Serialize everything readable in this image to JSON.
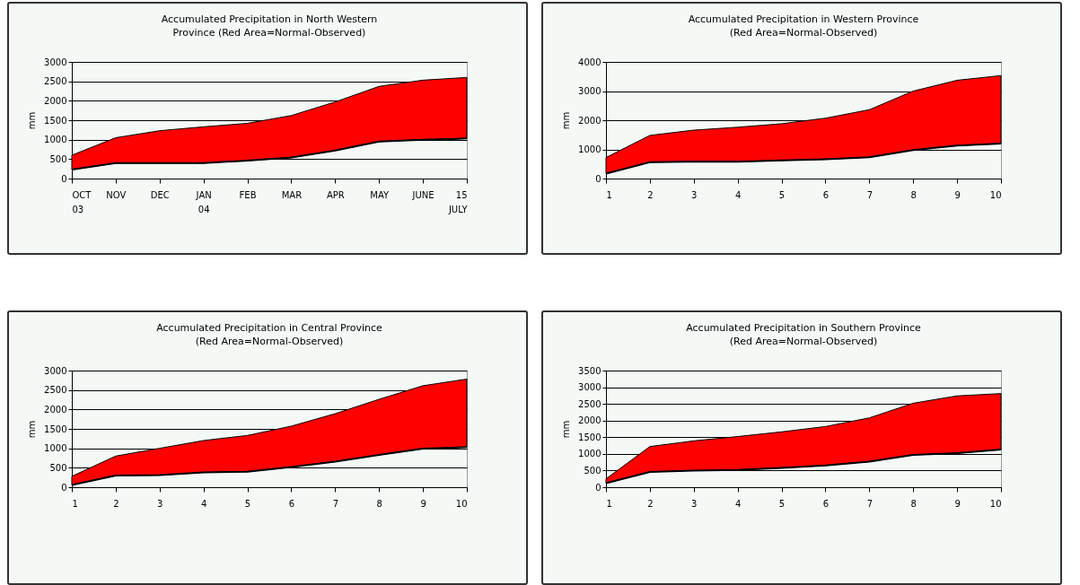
{
  "chart_data": [
    {
      "type": "area",
      "title": "Accumulated Precipitation in North Western",
      "subtitle": "Province (Red Area=Normal-Observed)",
      "ylabel": "mm",
      "categories": [
        "OCT 03",
        "NOV",
        "DEC",
        "JAN 04",
        "FEB",
        "MAR",
        "APR",
        "MAY",
        "JUNE",
        "15 JULY"
      ],
      "ylim": [
        0,
        3000
      ],
      "yticks": [
        0,
        500,
        1000,
        1500,
        2000,
        2500,
        3000
      ],
      "grid": "y",
      "series": [
        {
          "type": "line",
          "color": "#000000",
          "values": [
            230,
            400,
            400,
            400,
            460,
            540,
            720,
            950,
            1000,
            1030
          ]
        },
        {
          "type": "area",
          "color": "#ff0000",
          "values": [
            600,
            1050,
            1230,
            1330,
            1420,
            1620,
            1970,
            2370,
            2530,
            2600
          ]
        }
      ]
    },
    {
      "type": "area",
      "title": "Accumulated Precipitation in Western Province",
      "subtitle": "(Red Area=Normal-Observed)",
      "ylabel": "mm",
      "x": [
        1,
        2,
        3,
        4,
        5,
        6,
        7,
        8,
        9,
        10
      ],
      "xlim": [
        1,
        10
      ],
      "xticks": [
        1,
        2,
        3,
        4,
        5,
        6,
        7,
        8,
        9,
        10
      ],
      "ylim": [
        0,
        4000
      ],
      "yticks": [
        0,
        1000,
        2000,
        3000,
        4000
      ],
      "grid": "y",
      "series": [
        {
          "type": "line",
          "color": "#000000",
          "values": [
            170,
            560,
            580,
            580,
            620,
            660,
            730,
            980,
            1130,
            1200
          ]
        },
        {
          "type": "area",
          "color": "#ff0000",
          "values": [
            720,
            1480,
            1660,
            1760,
            1880,
            2070,
            2360,
            3000,
            3370,
            3530
          ]
        }
      ]
    },
    {
      "type": "area",
      "title": "Accumulated Precipitation in Central Province",
      "subtitle": "(Red Area=Normal-Observed)",
      "ylabel": "mm",
      "x": [
        1,
        2,
        3,
        4,
        5,
        6,
        7,
        8,
        9,
        10
      ],
      "xlim": [
        1,
        10
      ],
      "xticks": [
        1,
        2,
        3,
        4,
        5,
        6,
        7,
        8,
        9,
        10
      ],
      "ylim": [
        0,
        3000
      ],
      "yticks": [
        0,
        500,
        1000,
        1500,
        2000,
        2500,
        3000
      ],
      "grid": "y",
      "series": [
        {
          "type": "line",
          "color": "#000000",
          "values": [
            60,
            300,
            310,
            380,
            400,
            520,
            660,
            830,
            990,
            1030
          ]
        },
        {
          "type": "area",
          "color": "#ff0000",
          "values": [
            280,
            800,
            1000,
            1200,
            1330,
            1570,
            1890,
            2260,
            2610,
            2780
          ]
        }
      ]
    },
    {
      "type": "area",
      "title": "Accumulated Precipitation in Southern Province",
      "subtitle": "(Red Area=Normal-Observed)",
      "ylabel": "mm",
      "x": [
        1,
        2,
        3,
        4,
        5,
        6,
        7,
        8,
        9,
        10
      ],
      "xlim": [
        1,
        10
      ],
      "xticks": [
        1,
        2,
        3,
        4,
        5,
        6,
        7,
        8,
        9,
        10
      ],
      "ylim": [
        0,
        3500
      ],
      "yticks": [
        0,
        500,
        1000,
        1500,
        2000,
        2500,
        3000,
        3500
      ],
      "grid": "y",
      "series": [
        {
          "type": "line",
          "color": "#000000",
          "values": [
            120,
            460,
            500,
            520,
            580,
            650,
            770,
            970,
            1020,
            1130
          ]
        },
        {
          "type": "area",
          "color": "#ff0000",
          "values": [
            250,
            1220,
            1390,
            1520,
            1660,
            1820,
            2080,
            2520,
            2740,
            2810
          ]
        }
      ]
    }
  ]
}
